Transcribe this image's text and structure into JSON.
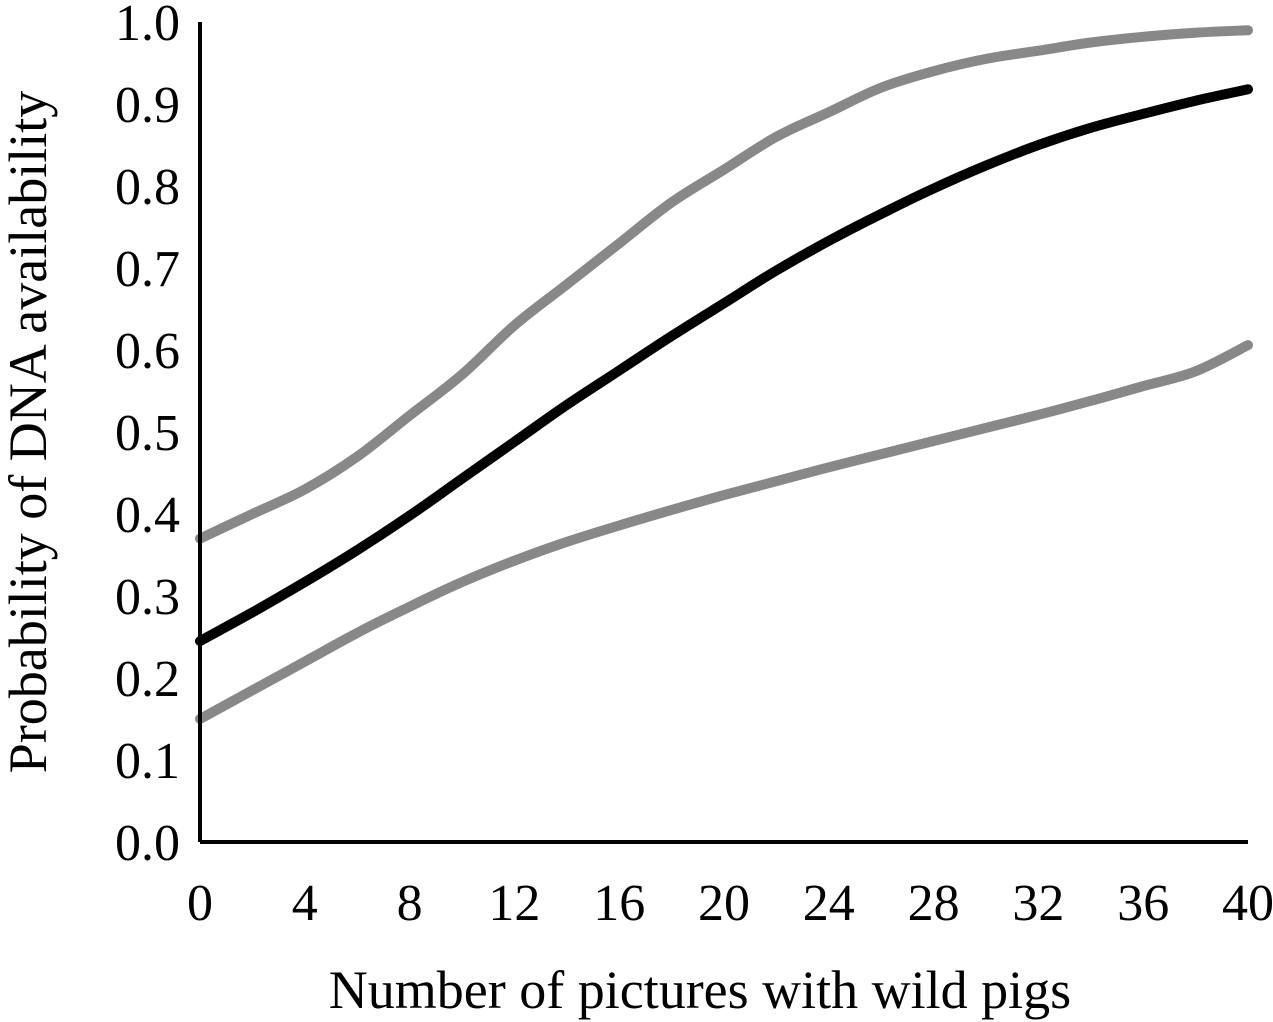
{
  "chart_data": {
    "type": "line",
    "title": "",
    "xlabel": "Number of pictures with wild pigs",
    "ylabel": "Probability of DNA availability",
    "xlim": [
      0,
      40
    ],
    "ylim": [
      0,
      1.0
    ],
    "xticks": [
      "0",
      "4",
      "8",
      "12",
      "16",
      "20",
      "24",
      "28",
      "32",
      "36",
      "40"
    ],
    "yticks": [
      "0.0",
      "0.1",
      "0.2",
      "0.3",
      "0.4",
      "0.5",
      "0.6",
      "0.7",
      "0.8",
      "0.9",
      "1.0"
    ],
    "grid": false,
    "legend": "none",
    "x": [
      0,
      2,
      4,
      6,
      8,
      10,
      12,
      14,
      16,
      18,
      20,
      22,
      24,
      26,
      28,
      30,
      32,
      34,
      36,
      38,
      40
    ],
    "series": [
      {
        "color": "#888888",
        "values": [
          0.37,
          0.4,
          0.43,
          0.47,
          0.52,
          0.57,
          0.63,
          0.68,
          0.73,
          0.78,
          0.82,
          0.86,
          0.89,
          0.92,
          0.94,
          0.955,
          0.965,
          0.975,
          0.982,
          0.987,
          0.99
        ]
      },
      {
        "color": "#000000",
        "values": [
          0.245,
          0.28,
          0.317,
          0.356,
          0.398,
          0.443,
          0.488,
          0.533,
          0.575,
          0.617,
          0.657,
          0.697,
          0.733,
          0.766,
          0.797,
          0.825,
          0.85,
          0.871,
          0.888,
          0.904,
          0.918
        ]
      },
      {
        "color": "#888888",
        "values": [
          0.15,
          0.185,
          0.22,
          0.255,
          0.287,
          0.317,
          0.343,
          0.366,
          0.386,
          0.405,
          0.423,
          0.44,
          0.457,
          0.473,
          0.489,
          0.505,
          0.521,
          0.538,
          0.556,
          0.574,
          0.606
        ]
      }
    ]
  }
}
